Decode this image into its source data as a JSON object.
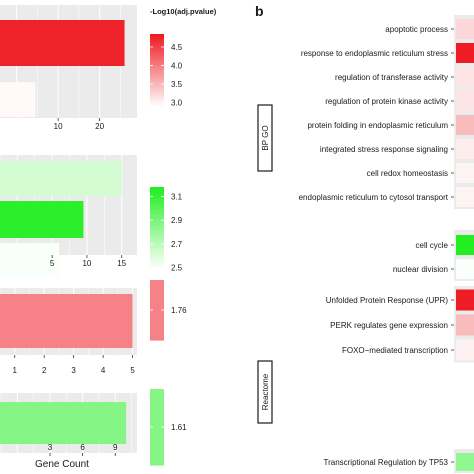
{
  "panel_letter": "b",
  "left_x_axis_title": "Gene Count",
  "colors": {
    "red_high": "#ee1c24",
    "red_low": "#ffffff",
    "green_high": "#22ee22",
    "green_low": "#ffffff",
    "panel_bg": "#ebebeb",
    "grid": "#ffffff"
  },
  "chart_data": [
    {
      "type": "bar",
      "orientation": "horizontal",
      "panel": "left-1",
      "values": [
        26,
        4.5
      ],
      "colors": [
        4.8,
        2.9
      ],
      "xlim": [
        -4,
        29
      ],
      "xticks": [
        10,
        20
      ],
      "xtick_labels": [
        "10",
        "20"
      ],
      "legend": {
        "title": "-Log10(adj.pvalue)",
        "min": 2.85,
        "max": 4.85,
        "ticks": [
          4.5,
          4.0,
          3.5,
          3.0
        ],
        "tick_labels": [
          "4.5",
          "4.0",
          "3.5",
          "3.0"
        ],
        "palette": "red"
      }
    },
    {
      "type": "bar",
      "orientation": "horizontal",
      "panel": "left-2",
      "values": [
        15,
        9.5,
        6
      ],
      "colors": [
        2.62,
        3.15,
        2.5
      ],
      "xlim": [
        -2.5,
        17.2
      ],
      "xticks": [
        5,
        10,
        15
      ],
      "xtick_labels": [
        "5",
        "10",
        "15"
      ],
      "legend": {
        "title": "",
        "min": 2.48,
        "max": 3.18,
        "ticks": [
          3.1,
          2.9,
          2.7,
          2.5
        ],
        "tick_labels": [
          "3.1",
          "2.9",
          "2.7",
          "2.5"
        ],
        "palette": "green"
      }
    },
    {
      "type": "bar",
      "orientation": "horizontal",
      "panel": "left-3",
      "values": [
        5
      ],
      "colors": [
        1.76
      ],
      "xlim": [
        0.5,
        5.15
      ],
      "xticks": [
        1,
        2,
        3,
        4,
        5
      ],
      "xtick_labels": [
        "1",
        "2",
        "3",
        "4",
        "5"
      ],
      "legend": {
        "title": "",
        "min": 1.76,
        "max": 1.76,
        "ticks": [
          1.76
        ],
        "tick_labels": [
          "1.76"
        ],
        "palette": "red"
      }
    },
    {
      "type": "bar",
      "orientation": "horizontal",
      "panel": "left-4",
      "values": [
        10
      ],
      "colors": [
        1.61
      ],
      "xlim": [
        -1.6,
        11
      ],
      "xticks": [
        3,
        6,
        9
      ],
      "xtick_labels": [
        "3",
        "6",
        "9"
      ],
      "legend": {
        "title": "",
        "min": 1.61,
        "max": 1.61,
        "ticks": [
          1.61
        ],
        "tick_labels": [
          "1.61"
        ],
        "palette": "green"
      }
    },
    {
      "type": "heatmap",
      "panel": "right-1",
      "group": "BP GO",
      "categories": [
        "apoptotic process",
        "response to endoplasmic reticulum stress",
        "regulation of transferase activity",
        "regulation of protein kinase activity",
        "protein folding in endoplasmic reticulum",
        "integrated stress response signaling",
        "cell redox homeostasis",
        "endoplasmic reticulum to cytosol transport"
      ],
      "values": [
        0.18,
        1.0,
        0.12,
        0.12,
        0.3,
        0.08,
        0.05,
        0.05
      ],
      "palette": "red"
    },
    {
      "type": "heatmap",
      "panel": "right-2",
      "group": "",
      "categories": [
        "cell cycle",
        "nuclear division"
      ],
      "values": [
        1.0,
        0.02
      ],
      "palette": "green"
    },
    {
      "type": "heatmap",
      "panel": "right-3",
      "group": "Reactome",
      "categories": [
        "Unfolded Protein Response (UPR)",
        "PERK regulates gene expression",
        "FOXO−mediated transcription"
      ],
      "values": [
        1.0,
        0.3,
        0.06
      ],
      "palette": "red"
    },
    {
      "type": "heatmap",
      "panel": "right-4",
      "group": "",
      "categories": [
        "Transcriptional Regulation by TP53"
      ],
      "values": [
        0.5
      ],
      "palette": "green"
    }
  ]
}
